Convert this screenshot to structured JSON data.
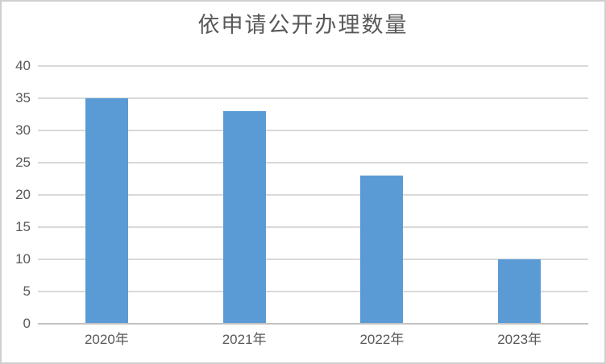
{
  "chart_data": {
    "type": "bar",
    "title": "依申请公开办理数量",
    "categories": [
      "2020年",
      "2021年",
      "2022年",
      "2023年"
    ],
    "values": [
      35,
      33,
      23,
      10
    ],
    "ylim": [
      0,
      40
    ],
    "ytick_step": 5,
    "yticks": [
      0,
      5,
      10,
      15,
      20,
      25,
      30,
      35,
      40
    ],
    "grid": "horizontal",
    "legend": "none",
    "colors": {
      "bar": "#5B9BD5",
      "gridline": "#D9D9D9",
      "axis_line": "#C3C1C1",
      "text": "#595959",
      "frame_border": "#CFCFCF",
      "background": "#FFFFFF"
    }
  }
}
